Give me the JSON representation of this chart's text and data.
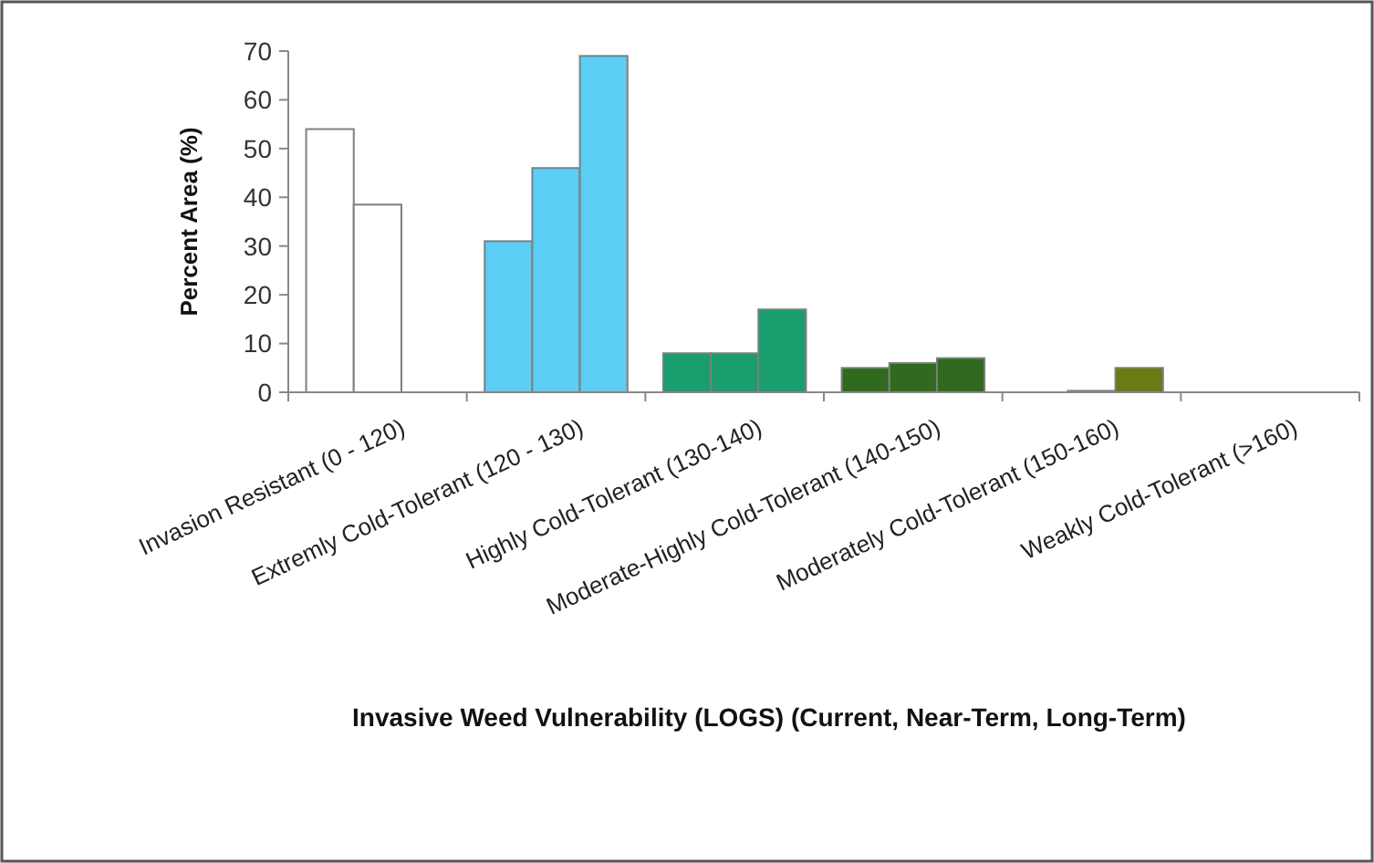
{
  "chart_data": {
    "type": "bar",
    "xlabel": "Invasive Weed Vulnerability (LOGS) (Current, Near-Term, Long-Term)",
    "ylabel": "Percent Area (%)",
    "categories": [
      "Invasion Resistant (0 - 120)",
      "Extremly Cold-Tolerant (120 - 130)",
      "Highly Cold-Tolerant (130-140)",
      "Moderate-Highly Cold-Tolerant (140-150)",
      "Moderately Cold-Tolerant (150-160)",
      "Weakly Cold-Tolerant (>160)"
    ],
    "series": [
      {
        "colors": [
          "#ffffff",
          "#5ccdf4",
          "#1a9e6e",
          "#2f6a1e",
          "#6b7a12",
          "#6b7a12"
        ],
        "values": [
          54,
          31,
          8,
          5,
          0,
          0
        ]
      },
      {
        "colors": [
          "#ffffff",
          "#5ccdf4",
          "#1a9e6e",
          "#2f6a1e",
          "#6b7a12",
          "#6b7a12"
        ],
        "values": [
          38.5,
          46,
          8,
          6,
          0.3,
          0
        ]
      },
      {
        "colors": [
          "#ffffff",
          "#5ccdf4",
          "#1a9e6e",
          "#2f6a1e",
          "#6b7a12",
          "#6b7a12"
        ],
        "values": [
          0,
          69,
          17,
          7,
          5,
          0
        ]
      }
    ],
    "ylim": [
      0,
      70
    ],
    "yticks": [
      0,
      10,
      20,
      30,
      40,
      50,
      60,
      70
    ],
    "grid": false
  }
}
